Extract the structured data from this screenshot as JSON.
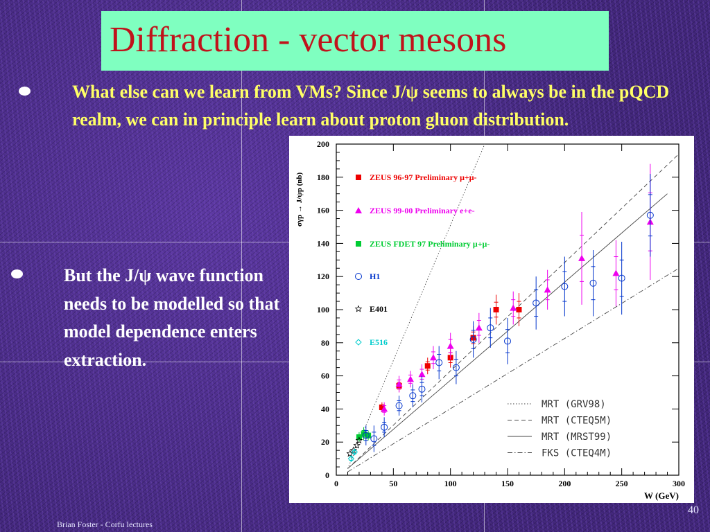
{
  "slide": {
    "title": "Diffraction - vector mesons",
    "bullet1": "What else can we learn from VMs? Since J/ψ seems to always be in the pQCD realm, we can in principle learn about proton gluon distribution.",
    "bullet2": "But the J/ψ wave function needs to be modelled so that model dependence enters extraction.",
    "footer": "Brian Foster - Corfu lectures",
    "page_number": "40"
  },
  "chart_data": {
    "type": "scatter",
    "ylabel": "σγp → J/ψp (nb)",
    "xlabel": "W (GeV)",
    "xlim": [
      0,
      300
    ],
    "ylim": [
      0,
      200
    ],
    "x_ticks": [
      0,
      50,
      100,
      150,
      200,
      250,
      300
    ],
    "y_ticks": [
      0,
      20,
      40,
      60,
      80,
      100,
      120,
      140,
      160,
      180,
      200
    ],
    "series": [
      {
        "name": "ZEUS 96-97 Preliminary μ+μ-",
        "color": "#ee0000",
        "marker": "square",
        "points": [
          {
            "x": 40,
            "y": 41,
            "err": 3
          },
          {
            "x": 55,
            "y": 54,
            "err": 4
          },
          {
            "x": 80,
            "y": 66,
            "err": 5
          },
          {
            "x": 100,
            "y": 71,
            "err": 6
          },
          {
            "x": 120,
            "y": 83,
            "err": 7
          },
          {
            "x": 140,
            "y": 100,
            "err": 9
          },
          {
            "x": 160,
            "y": 100,
            "err": 10
          }
        ]
      },
      {
        "name": "ZEUS 99-00 Preliminary e+e-",
        "color": "#ee00ee",
        "marker": "triangle",
        "points": [
          {
            "x": 42,
            "y": 40,
            "err": 4
          },
          {
            "x": 55,
            "y": 55,
            "err": 5
          },
          {
            "x": 65,
            "y": 58,
            "err": 5
          },
          {
            "x": 75,
            "y": 61,
            "err": 6
          },
          {
            "x": 85,
            "y": 71,
            "err": 7
          },
          {
            "x": 100,
            "y": 78,
            "err": 8
          },
          {
            "x": 125,
            "y": 89,
            "err": 9
          },
          {
            "x": 155,
            "y": 101,
            "err": 10
          },
          {
            "x": 185,
            "y": 112,
            "err": 12
          },
          {
            "x": 215,
            "y": 131,
            "err": 28
          },
          {
            "x": 245,
            "y": 122,
            "err": 20
          },
          {
            "x": 275,
            "y": 153,
            "err": 35
          }
        ]
      },
      {
        "name": "ZEUS FDET 97 Preliminary μ+μ-",
        "color": "#00cc33",
        "marker": "square",
        "points": [
          {
            "x": 20,
            "y": 23,
            "err": 3
          },
          {
            "x": 24,
            "y": 25,
            "err": 4
          },
          {
            "x": 28,
            "y": 24,
            "err": 3
          }
        ]
      },
      {
        "name": "H1",
        "color": "#0033cc",
        "marker": "circle",
        "points": [
          {
            "x": 26,
            "y": 24,
            "err": 6
          },
          {
            "x": 33,
            "y": 22,
            "err": 8
          },
          {
            "x": 42,
            "y": 29,
            "err": 6
          },
          {
            "x": 55,
            "y": 42,
            "err": 6
          },
          {
            "x": 67,
            "y": 48,
            "err": 7
          },
          {
            "x": 75,
            "y": 52,
            "err": 8
          },
          {
            "x": 90,
            "y": 68,
            "err": 10
          },
          {
            "x": 105,
            "y": 65,
            "err": 10
          },
          {
            "x": 120,
            "y": 82,
            "err": 11
          },
          {
            "x": 135,
            "y": 89,
            "err": 12
          },
          {
            "x": 150,
            "y": 81,
            "err": 14
          },
          {
            "x": 175,
            "y": 104,
            "err": 16
          },
          {
            "x": 200,
            "y": 114,
            "err": 18
          },
          {
            "x": 225,
            "y": 116,
            "err": 20
          },
          {
            "x": 250,
            "y": 119,
            "err": 22
          },
          {
            "x": 275,
            "y": 157,
            "err": 25
          }
        ]
      },
      {
        "name": "E401",
        "color": "#000000",
        "marker": "star",
        "points": [
          {
            "x": 12,
            "y": 13,
            "err": 0
          },
          {
            "x": 15,
            "y": 15,
            "err": 0
          },
          {
            "x": 18,
            "y": 18,
            "err": 0
          },
          {
            "x": 20,
            "y": 21,
            "err": 0
          }
        ]
      },
      {
        "name": "E516",
        "color": "#00cccc",
        "marker": "diamond",
        "points": [
          {
            "x": 13,
            "y": 10,
            "err": 2
          },
          {
            "x": 16,
            "y": 14,
            "err": 2
          }
        ]
      }
    ],
    "curves": [
      {
        "name": "MRT (GRV98)",
        "style": "dotted",
        "from": [
          10,
          4
        ],
        "to": [
          130,
          200
        ]
      },
      {
        "name": "MRT (CTEQ5M)",
        "style": "dashed",
        "from": [
          10,
          4
        ],
        "to": [
          300,
          194
        ]
      },
      {
        "name": "MRT (MRST99)",
        "style": "solid",
        "from": [
          10,
          4
        ],
        "to": [
          290,
          170
        ]
      },
      {
        "name": "FKS (CTEQ4M)",
        "style": "dashdot",
        "from": [
          10,
          2
        ],
        "to": [
          300,
          125
        ]
      }
    ]
  }
}
